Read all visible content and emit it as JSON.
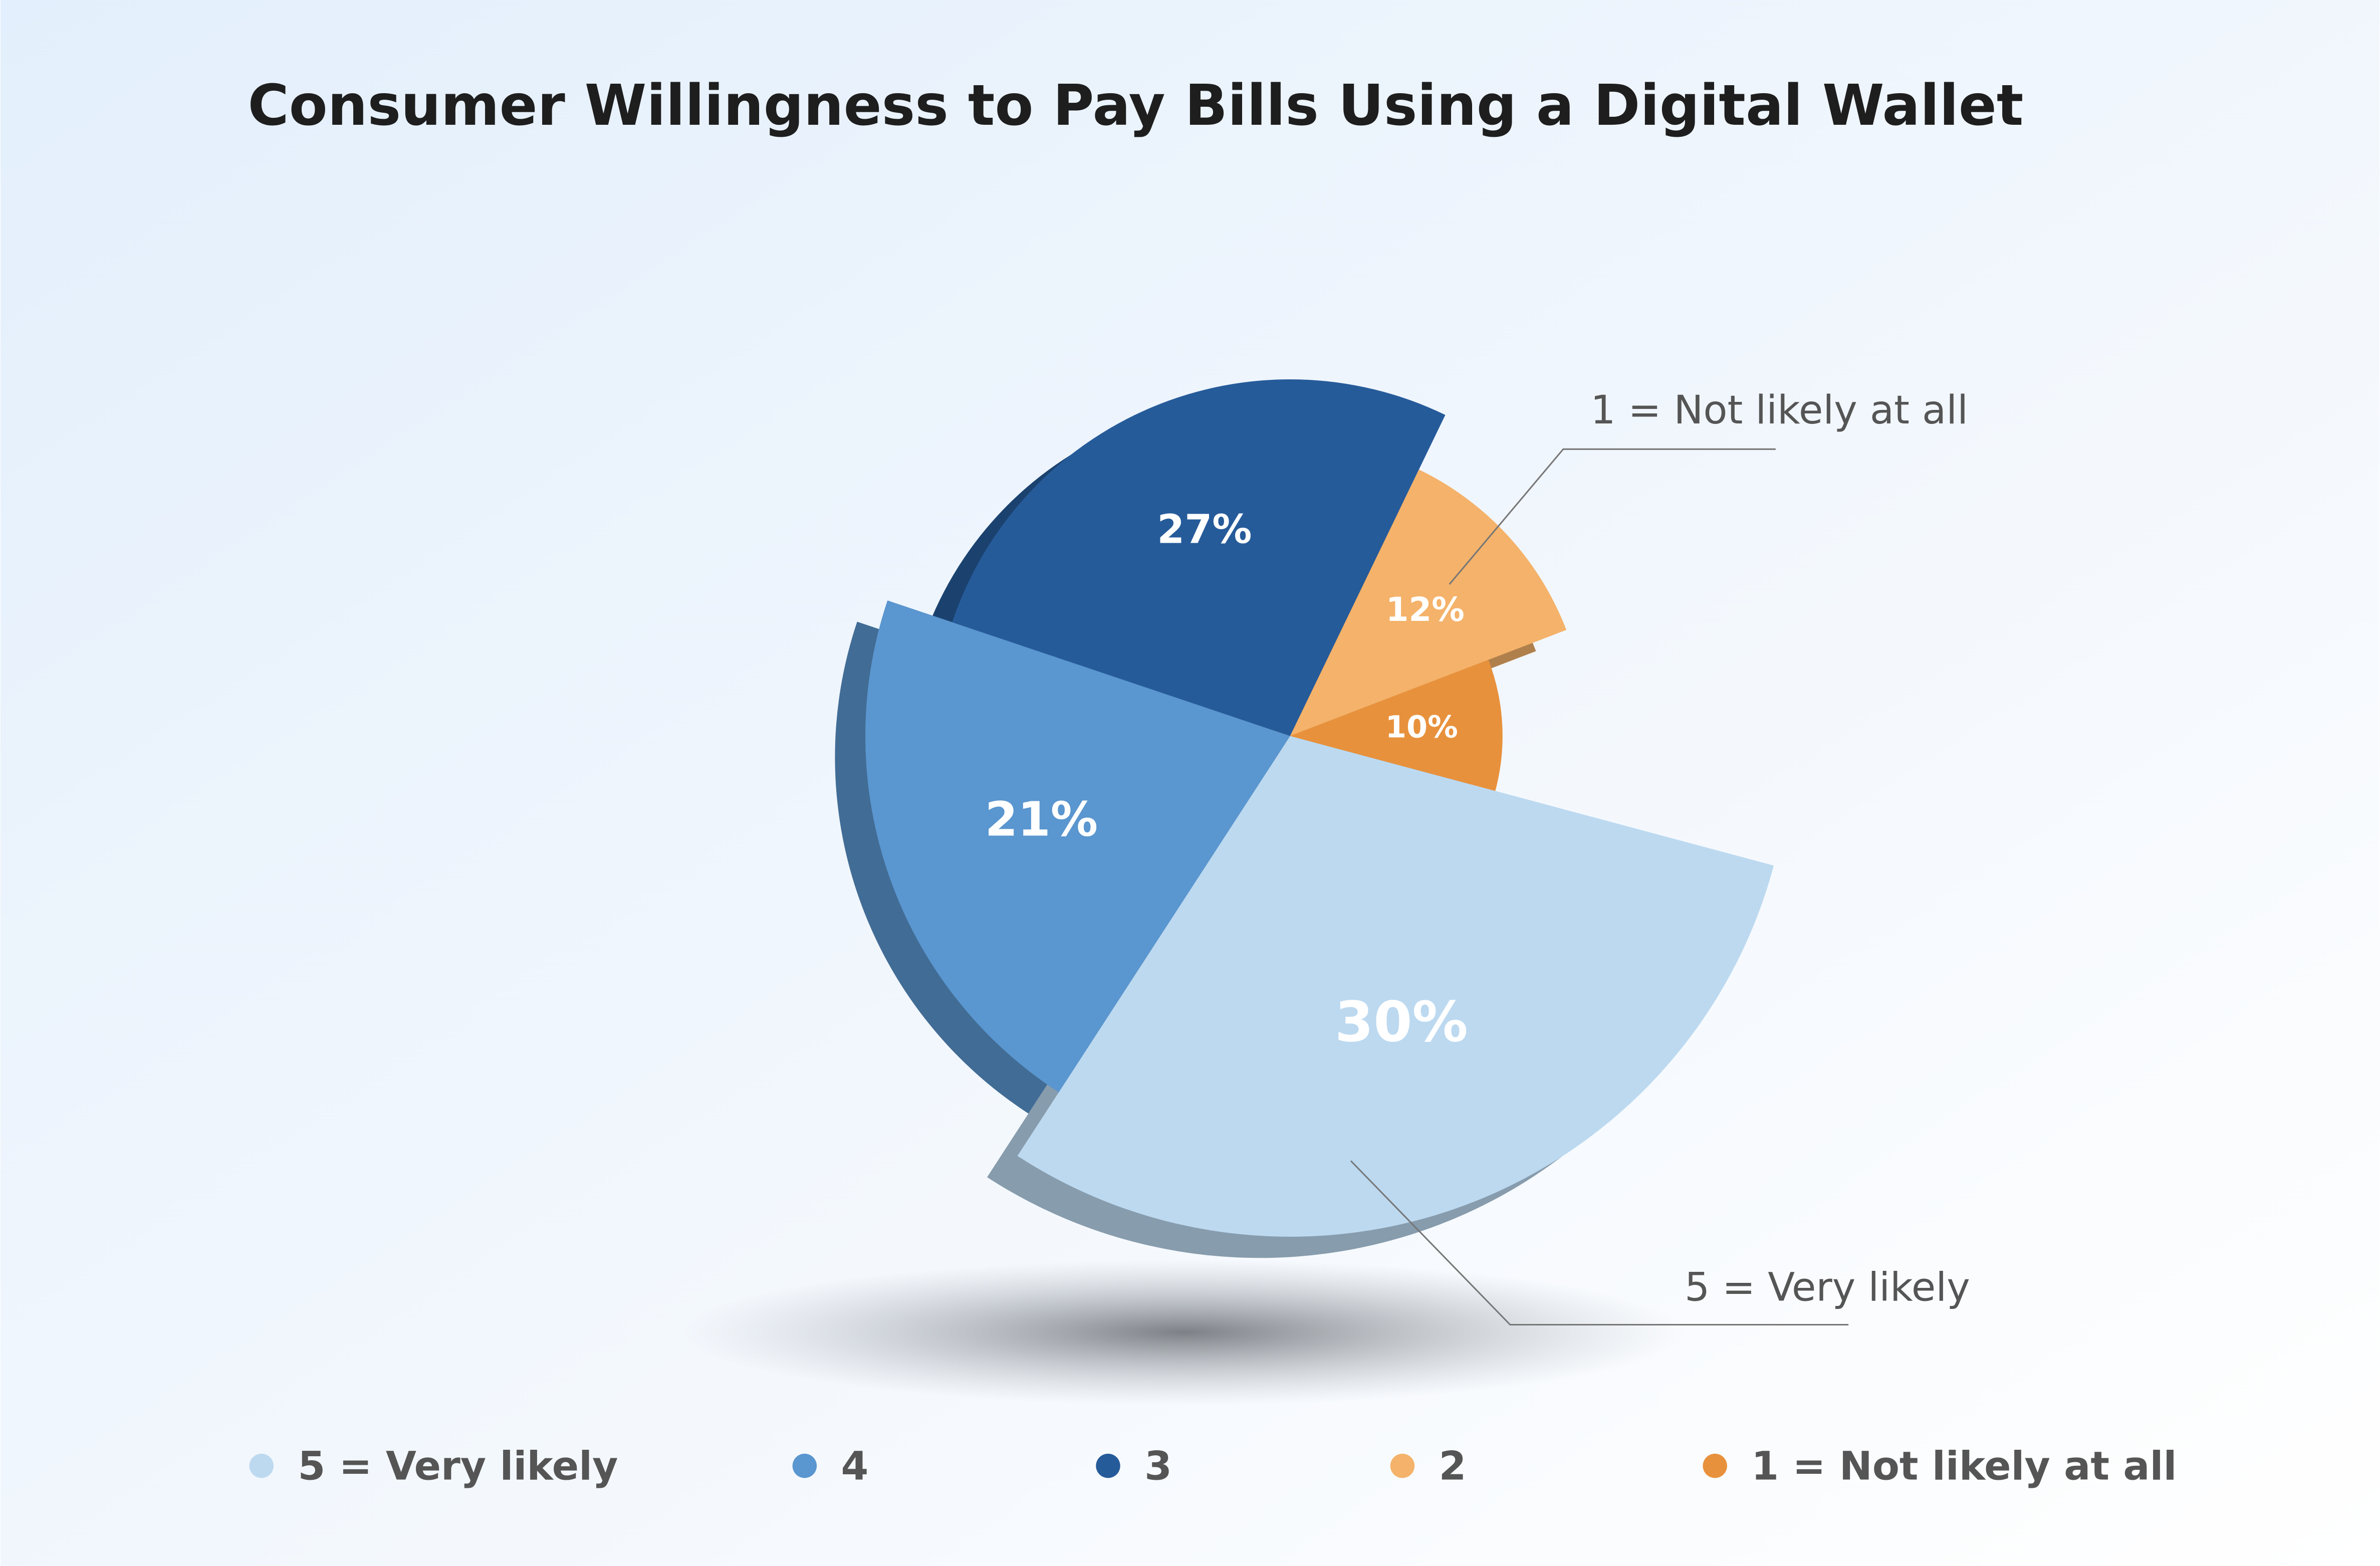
{
  "chart_data": {
    "type": "pie",
    "title": "Consumer Willingness to Pay Bills Using a Digital Wallet",
    "categories": [
      "5 = Very likely",
      "4",
      "3",
      "2",
      "1 = Not likely at all"
    ],
    "values": [
      30,
      21,
      27,
      12,
      10
    ],
    "value_labels": [
      "30%",
      "21%",
      "27%",
      "12%",
      "10%"
    ],
    "colors": [
      "#bcd9f0",
      "#5a96cf",
      "#265b9a",
      "#f4b26a",
      "#e8913c"
    ]
  }
}
